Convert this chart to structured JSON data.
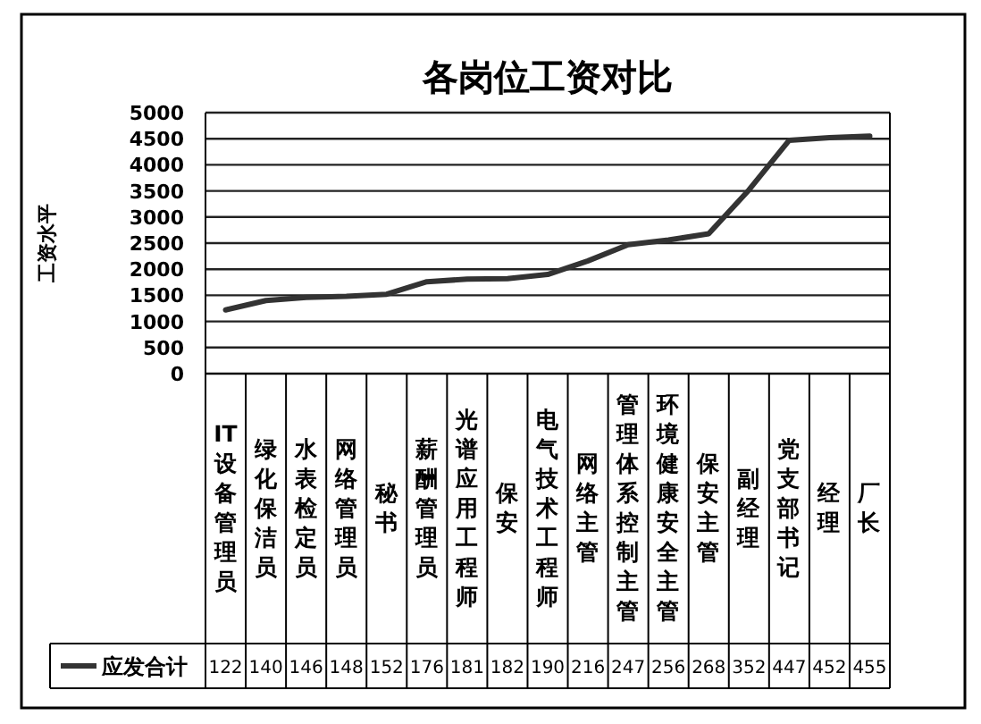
{
  "chart_data": {
    "type": "line",
    "title": "各岗位工资对比",
    "ylabel": "工资水平",
    "categories": [
      "IT设备管理员",
      "绿化保洁员",
      "水表检定员",
      "网络管理员",
      "秘书",
      "薪酬管理员",
      "光谱应用工程师",
      "保安",
      "电气技术工程师",
      "网络主管",
      "管理体系控制主管",
      "环境健康安全主管",
      "保安主管",
      "副经理",
      "党支部书记",
      "经理",
      "厂长"
    ],
    "series": [
      {
        "name": "应发合计",
        "color": "#333333",
        "values": [
          1220,
          1400,
          1460,
          1480,
          1520,
          1760,
          1810,
          1820,
          1900,
          2160,
          2470,
          2560,
          2680,
          3520,
          4470,
          4520,
          4550
        ]
      }
    ],
    "annotations": [
      "122",
      "140",
      "146",
      "148",
      "152",
      "176",
      "181",
      "182",
      "190",
      "216",
      "247",
      "256",
      "268",
      "352",
      "447",
      "452",
      "455"
    ],
    "ylim": [
      0,
      5000
    ],
    "yticks": [
      0,
      500,
      1000,
      1500,
      2000,
      2500,
      3000,
      3500,
      4000,
      4500,
      5000
    ],
    "grid": "y",
    "legend": "bottom",
    "line_style": "solid"
  }
}
